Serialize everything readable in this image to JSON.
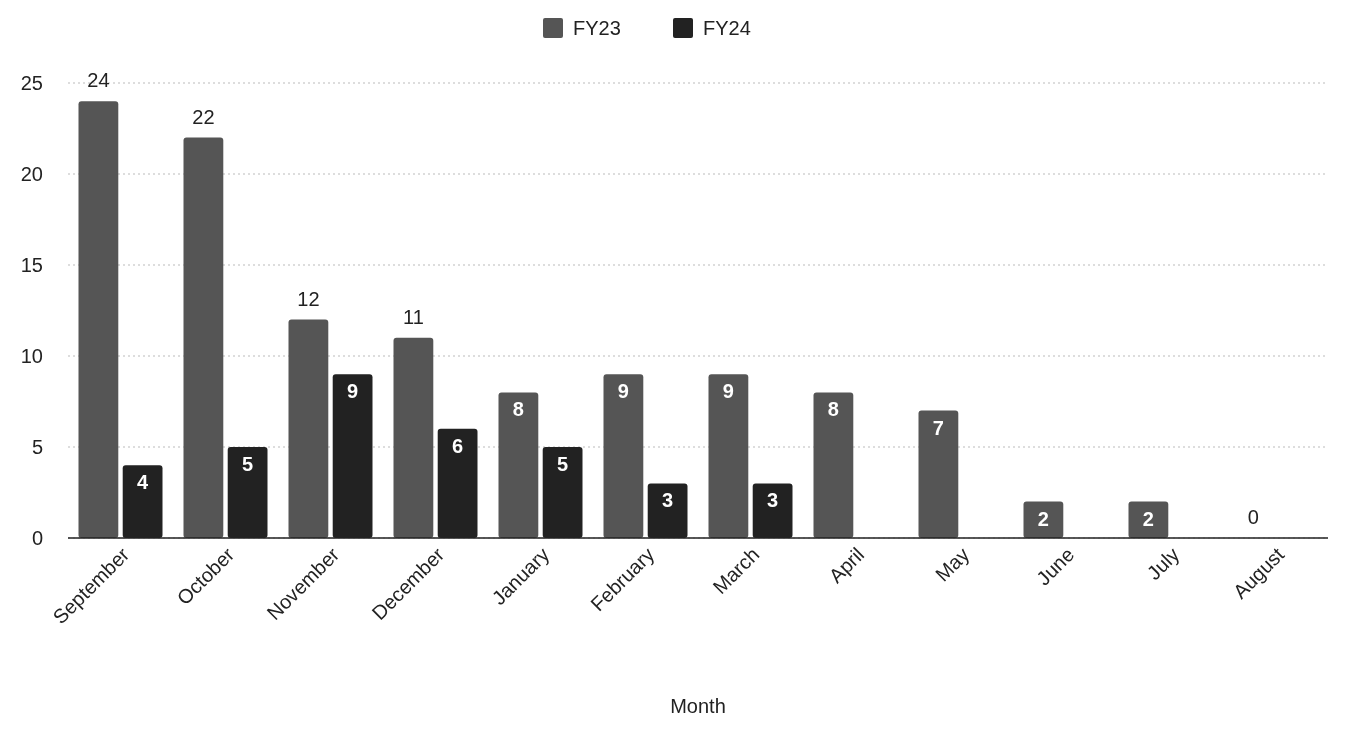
{
  "chart_data": {
    "type": "bar",
    "xlabel": "Month",
    "categories": [
      "September",
      "October",
      "November",
      "December",
      "January",
      "February",
      "March",
      "April",
      "May",
      "June",
      "July",
      "August"
    ],
    "series": [
      {
        "name": "FY23",
        "color": "#555555",
        "values": [
          24,
          22,
          12,
          11,
          8,
          9,
          9,
          8,
          7,
          2,
          2,
          0
        ]
      },
      {
        "name": "FY24",
        "color": "#222222",
        "values": [
          4,
          5,
          9,
          6,
          5,
          3,
          3,
          null,
          null,
          null,
          null,
          null
        ]
      }
    ],
    "ylim": [
      0,
      25
    ],
    "yticks": [
      0,
      5,
      10,
      15,
      20,
      25
    ],
    "grid": "y",
    "legend": "top",
    "data_labels": true
  }
}
